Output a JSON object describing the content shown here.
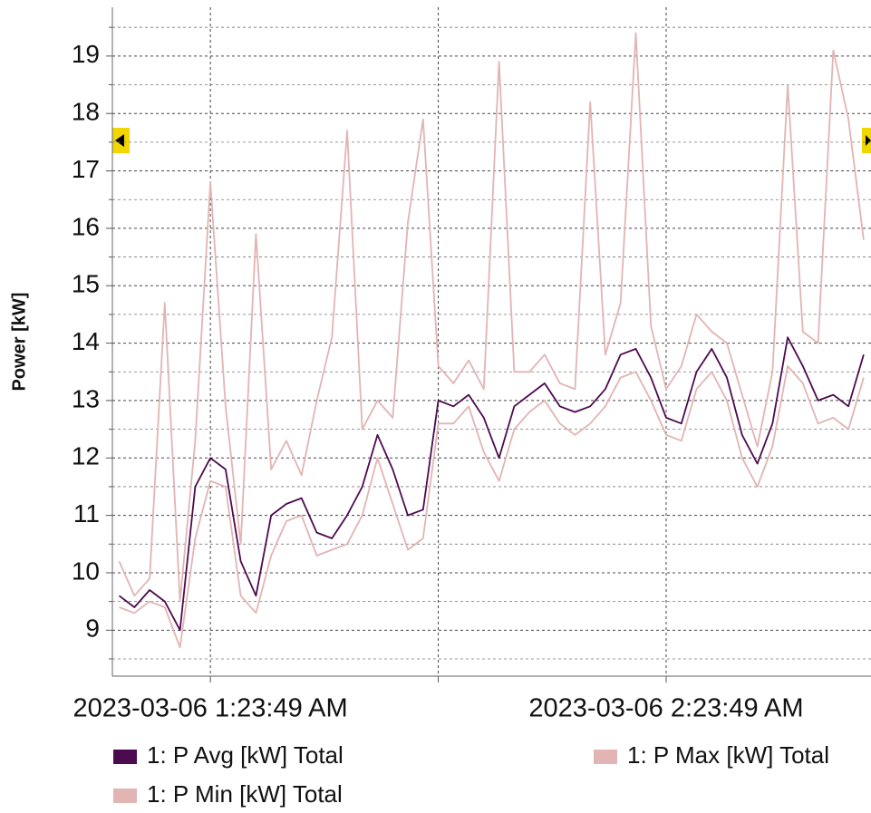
{
  "chart_data": {
    "type": "line",
    "y_label": "Power [kW]",
    "x": [
      "2023-03-06 1:11:49 AM",
      "2023-03-06 1:13:49 AM",
      "2023-03-06 1:15:49 AM",
      "2023-03-06 1:17:49 AM",
      "2023-03-06 1:19:49 AM",
      "2023-03-06 1:21:49 AM",
      "2023-03-06 1:23:49 AM",
      "2023-03-06 1:25:49 AM",
      "2023-03-06 1:27:49 AM",
      "2023-03-06 1:29:49 AM",
      "2023-03-06 1:31:49 AM",
      "2023-03-06 1:33:49 AM",
      "2023-03-06 1:35:49 AM",
      "2023-03-06 1:37:49 AM",
      "2023-03-06 1:39:49 AM",
      "2023-03-06 1:41:49 AM",
      "2023-03-06 1:43:49 AM",
      "2023-03-06 1:45:49 AM",
      "2023-03-06 1:47:49 AM",
      "2023-03-06 1:49:49 AM",
      "2023-03-06 1:51:49 AM",
      "2023-03-06 1:53:49 AM",
      "2023-03-06 1:55:49 AM",
      "2023-03-06 1:57:49 AM",
      "2023-03-06 1:59:49 AM",
      "2023-03-06 2:01:49 AM",
      "2023-03-06 2:03:49 AM",
      "2023-03-06 2:05:49 AM",
      "2023-03-06 2:07:49 AM",
      "2023-03-06 2:09:49 AM",
      "2023-03-06 2:11:49 AM",
      "2023-03-06 2:13:49 AM",
      "2023-03-06 2:15:49 AM",
      "2023-03-06 2:17:49 AM",
      "2023-03-06 2:19:49 AM",
      "2023-03-06 2:21:49 AM",
      "2023-03-06 2:23:49 AM",
      "2023-03-06 2:25:49 AM",
      "2023-03-06 2:27:49 AM",
      "2023-03-06 2:29:49 AM",
      "2023-03-06 2:31:49 AM",
      "2023-03-06 2:33:49 AM",
      "2023-03-06 2:35:49 AM",
      "2023-03-06 2:37:49 AM",
      "2023-03-06 2:39:49 AM",
      "2023-03-06 2:41:49 AM",
      "2023-03-06 2:43:49 AM",
      "2023-03-06 2:45:49 AM",
      "2023-03-06 2:47:49 AM",
      "2023-03-06 2:49:49 AM"
    ],
    "series": [
      {
        "name": "1: P Avg [kW] Total",
        "color": "#4d0b4f",
        "values": [
          9.6,
          9.4,
          9.7,
          9.5,
          9.0,
          11.5,
          12.0,
          11.8,
          10.2,
          9.6,
          11.0,
          11.2,
          11.3,
          10.7,
          10.6,
          11.0,
          11.5,
          12.4,
          11.8,
          11.0,
          11.1,
          13.0,
          12.9,
          13.1,
          12.7,
          12.0,
          12.9,
          13.1,
          13.3,
          12.9,
          12.8,
          12.9,
          13.2,
          13.8,
          13.9,
          13.4,
          12.7,
          12.6,
          13.5,
          13.9,
          13.4,
          12.4,
          11.9,
          12.6,
          14.1,
          13.6,
          13.0,
          13.1,
          12.9,
          13.8
        ]
      },
      {
        "name": "1: P Max [kW] Total",
        "color": "#e2b4b4",
        "values": [
          10.2,
          9.6,
          9.9,
          14.7,
          9.5,
          12.3,
          16.8,
          12.9,
          10.5,
          15.9,
          11.8,
          12.3,
          11.7,
          13.0,
          14.1,
          17.7,
          12.5,
          13.0,
          12.7,
          16.1,
          17.9,
          13.6,
          13.3,
          13.7,
          13.2,
          18.9,
          13.5,
          13.5,
          13.8,
          13.3,
          13.2,
          18.2,
          13.8,
          14.7,
          19.4,
          14.3,
          13.2,
          13.6,
          14.5,
          14.2,
          14.0,
          13.1,
          12.2,
          13.5,
          18.5,
          14.2,
          14.0,
          19.1,
          17.9,
          15.8
        ]
      },
      {
        "name": "1: P Min [kW] Total",
        "color": "#e2b4b4",
        "values": [
          9.4,
          9.3,
          9.5,
          9.4,
          8.7,
          10.6,
          11.6,
          11.5,
          9.6,
          9.3,
          10.3,
          10.9,
          11.0,
          10.3,
          10.4,
          10.5,
          11.0,
          12.0,
          11.2,
          10.4,
          10.6,
          12.6,
          12.6,
          12.9,
          12.1,
          11.6,
          12.5,
          12.8,
          13.0,
          12.6,
          12.4,
          12.6,
          12.9,
          13.4,
          13.5,
          13.0,
          12.4,
          12.3,
          13.2,
          13.5,
          13.0,
          12.0,
          11.5,
          12.2,
          13.6,
          13.3,
          12.6,
          12.7,
          12.5,
          13.4
        ]
      }
    ],
    "xlim": [
      "2023-03-06 1:10:55 AM",
      "2023-03-06 2:50:47 AM"
    ],
    "xticks": [
      "2023-03-06 1:23:49 AM",
      {
        "value": "2023-03-06 1:53:49 AM",
        "label": null
      },
      "2023-03-06 2:23:49 AM"
    ],
    "ylim": [
      8.2,
      19.85
    ],
    "yticks": [
      9,
      10,
      11,
      12,
      13,
      14,
      15,
      16,
      17,
      18,
      19
    ],
    "yminorticks": [
      8.5,
      9.5,
      10.5,
      11.5,
      12.5,
      13.5,
      14.5,
      15.5,
      16.5,
      17.5,
      18.5,
      19.5
    ],
    "grid": true
  }
}
